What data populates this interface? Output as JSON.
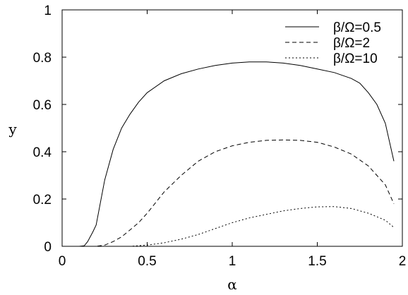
{
  "chart_data": {
    "type": "line",
    "xlabel": "α",
    "ylabel": "y",
    "xlim": [
      0,
      2
    ],
    "ylim": [
      0,
      1
    ],
    "x_ticks": [
      "0",
      "0.5",
      "1",
      "1.5",
      "2"
    ],
    "y_ticks": [
      "0",
      "0.2",
      "0.4",
      "0.6",
      "0.8",
      "1"
    ],
    "grid": false,
    "legend_position": "top-right",
    "series": [
      {
        "name": "β/Ω=0.5",
        "line_style": "solid",
        "x": [
          0,
          0.1,
          0.13,
          0.15,
          0.18,
          0.2,
          0.25,
          0.3,
          0.35,
          0.4,
          0.45,
          0.5,
          0.6,
          0.7,
          0.8,
          0.9,
          1.0,
          1.1,
          1.2,
          1.3,
          1.4,
          1.5,
          1.6,
          1.7,
          1.75,
          1.8,
          1.85,
          1.9,
          1.95
        ],
        "y": [
          0,
          0,
          0.002,
          0.02,
          0.06,
          0.09,
          0.28,
          0.41,
          0.5,
          0.56,
          0.61,
          0.65,
          0.7,
          0.73,
          0.75,
          0.765,
          0.775,
          0.78,
          0.78,
          0.775,
          0.765,
          0.75,
          0.735,
          0.71,
          0.69,
          0.65,
          0.6,
          0.52,
          0.36
        ]
      },
      {
        "name": "β/Ω=2",
        "line_style": "dashed",
        "x": [
          0,
          0.2,
          0.25,
          0.3,
          0.35,
          0.4,
          0.45,
          0.5,
          0.6,
          0.7,
          0.8,
          0.9,
          1.0,
          1.1,
          1.2,
          1.3,
          1.4,
          1.5,
          1.6,
          1.7,
          1.8,
          1.85,
          1.9,
          1.95
        ],
        "y": [
          0,
          0,
          0.005,
          0.02,
          0.04,
          0.07,
          0.1,
          0.14,
          0.23,
          0.3,
          0.36,
          0.4,
          0.425,
          0.44,
          0.448,
          0.45,
          0.448,
          0.44,
          0.42,
          0.39,
          0.34,
          0.3,
          0.26,
          0.18
        ]
      },
      {
        "name": "β/Ω=10",
        "line_style": "dotted",
        "x": [
          0,
          0.4,
          0.5,
          0.6,
          0.7,
          0.8,
          0.9,
          1.0,
          1.1,
          1.2,
          1.3,
          1.4,
          1.5,
          1.6,
          1.7,
          1.8,
          1.85,
          1.9,
          1.95
        ],
        "y": [
          0,
          0,
          0.005,
          0.015,
          0.03,
          0.05,
          0.075,
          0.1,
          0.12,
          0.135,
          0.15,
          0.16,
          0.167,
          0.168,
          0.16,
          0.14,
          0.125,
          0.11,
          0.08
        ]
      }
    ]
  }
}
